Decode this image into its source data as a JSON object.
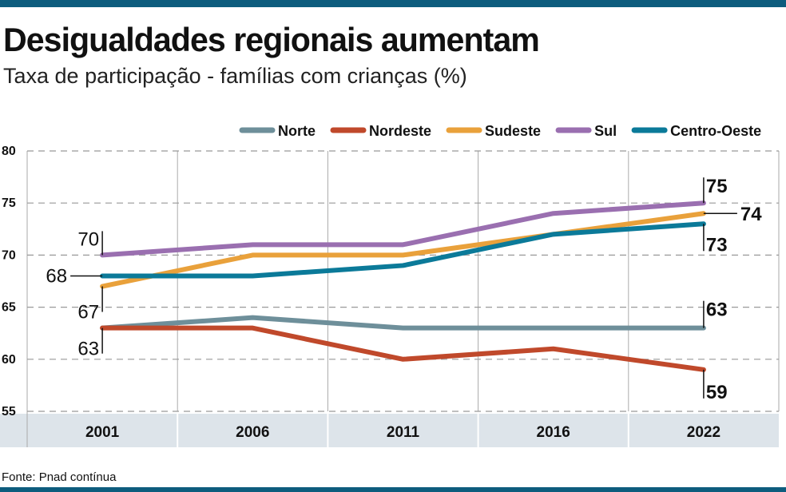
{
  "title": "Desigualdades regionais aumentam",
  "subtitle": "Taxa de participação - famílias com crianças (%)",
  "source": "Fonte: Pnad contínua",
  "chart_data": {
    "type": "line",
    "categories": [
      "2001",
      "2006",
      "2011",
      "2016",
      "2022"
    ],
    "ylim": [
      55,
      80
    ],
    "yticks": [
      80,
      75,
      70,
      65,
      60,
      55
    ],
    "grid": true,
    "legend": "top-right",
    "series": [
      {
        "name": "Norte",
        "color": "#6e8f9a",
        "values": [
          63,
          64,
          63,
          63,
          63
        ]
      },
      {
        "name": "Nordeste",
        "color": "#c0492b",
        "values": [
          63,
          63,
          60,
          61,
          59
        ]
      },
      {
        "name": "Sudeste",
        "color": "#e9a13b",
        "values": [
          67,
          70,
          70,
          72,
          74
        ]
      },
      {
        "name": "Sul",
        "color": "#9a6fb0",
        "values": [
          70,
          71,
          71,
          74,
          75
        ]
      },
      {
        "name": "Centro-Oeste",
        "color": "#0b7a99",
        "values": [
          68,
          68,
          69,
          72,
          73
        ]
      }
    ],
    "start_labels": [
      "70",
      "68",
      "67",
      "63"
    ],
    "end_labels": [
      "75",
      "74",
      "73",
      "63",
      "59"
    ]
  }
}
